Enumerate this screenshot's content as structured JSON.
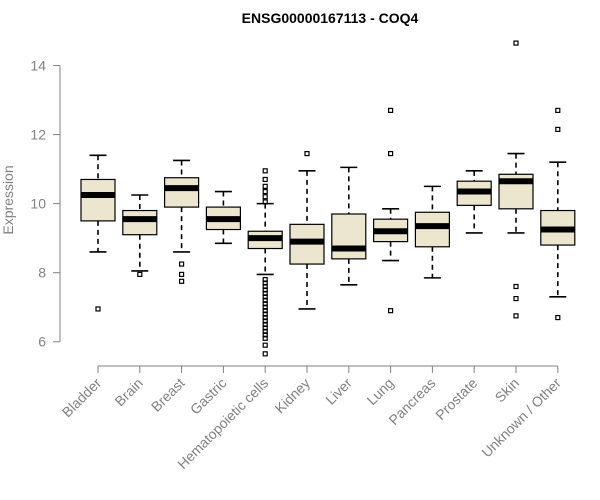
{
  "chart_data": {
    "type": "boxplot",
    "title": "ENSG00000167113 - COQ4",
    "xlabel": "",
    "ylabel": "Expression",
    "ylim": [
      5.5,
      15.0
    ],
    "yticks": [
      6,
      8,
      10,
      12,
      14
    ],
    "ytick_labels": [
      "6",
      "8",
      "10",
      "12",
      "14"
    ],
    "categories": [
      "Bladder",
      "Brain",
      "Breast",
      "Gastric",
      "Hematopoietic cells",
      "Kidney",
      "Liver",
      "Lung",
      "Pancreas",
      "Prostate",
      "Skin",
      "Unknown / Other"
    ],
    "series": [
      {
        "name": "Bladder",
        "whisker_low": 8.6,
        "q1": 9.5,
        "median": 10.25,
        "q3": 10.7,
        "whisker_high": 11.4,
        "outliers": [
          6.95
        ]
      },
      {
        "name": "Brain",
        "whisker_low": 8.05,
        "q1": 9.1,
        "median": 9.55,
        "q3": 9.8,
        "whisker_high": 10.25,
        "outliers": [
          7.95
        ]
      },
      {
        "name": "Breast",
        "whisker_low": 8.6,
        "q1": 9.9,
        "median": 10.45,
        "q3": 10.75,
        "whisker_high": 11.25,
        "outliers": [
          8.25,
          7.95,
          7.75
        ]
      },
      {
        "name": "Gastric",
        "whisker_low": 8.85,
        "q1": 9.25,
        "median": 9.55,
        "q3": 9.9,
        "whisker_high": 10.35,
        "outliers": []
      },
      {
        "name": "Hematopoietic cells",
        "whisker_low": 7.95,
        "q1": 8.7,
        "median": 9.0,
        "q3": 9.2,
        "whisker_high": 10.0,
        "outliers": [
          10.95,
          10.7,
          10.5,
          10.35,
          10.2,
          10.05,
          7.8,
          7.7,
          7.6,
          7.5,
          7.4,
          7.3,
          7.2,
          7.1,
          7.0,
          6.9,
          6.8,
          6.7,
          6.6,
          6.5,
          6.4,
          6.3,
          6.2,
          6.1,
          5.9,
          5.65
        ]
      },
      {
        "name": "Kidney",
        "whisker_low": 6.95,
        "q1": 8.25,
        "median": 8.9,
        "q3": 9.4,
        "whisker_high": 10.95,
        "outliers": [
          11.45
        ]
      },
      {
        "name": "Liver",
        "whisker_low": 7.65,
        "q1": 8.4,
        "median": 8.7,
        "q3": 9.7,
        "whisker_high": 11.05,
        "outliers": []
      },
      {
        "name": "Lung",
        "whisker_low": 8.35,
        "q1": 8.9,
        "median": 9.2,
        "q3": 9.55,
        "whisker_high": 9.85,
        "outliers": [
          12.7,
          11.45,
          6.9
        ]
      },
      {
        "name": "Pancreas",
        "whisker_low": 7.85,
        "q1": 8.75,
        "median": 9.35,
        "q3": 9.75,
        "whisker_high": 10.5,
        "outliers": []
      },
      {
        "name": "Prostate",
        "whisker_low": 9.15,
        "q1": 9.95,
        "median": 10.35,
        "q3": 10.65,
        "whisker_high": 10.95,
        "outliers": []
      },
      {
        "name": "Skin",
        "whisker_low": 9.15,
        "q1": 9.85,
        "median": 10.65,
        "q3": 10.85,
        "whisker_high": 11.45,
        "outliers": [
          14.65,
          7.6,
          7.25,
          6.75
        ]
      },
      {
        "name": "Unknown / Other",
        "whisker_low": 7.3,
        "q1": 8.8,
        "median": 9.25,
        "q3": 9.8,
        "whisker_high": 11.2,
        "outliers": [
          12.7,
          12.15,
          6.7
        ]
      }
    ],
    "box_fill": "#ede6cf",
    "grid": false,
    "legend": "none"
  }
}
